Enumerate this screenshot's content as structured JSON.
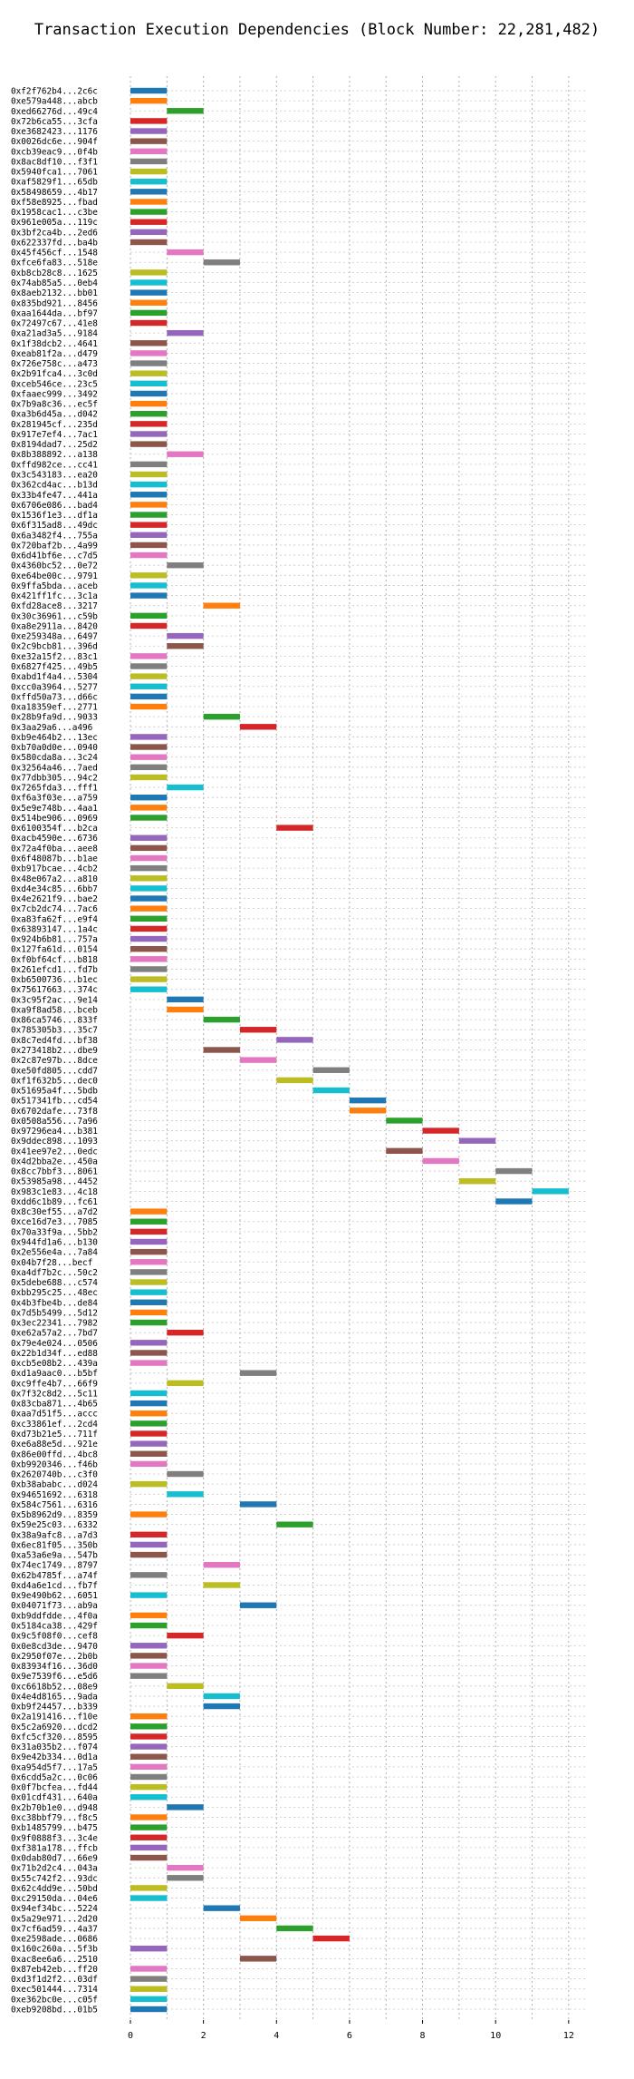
{
  "chart_data": {
    "type": "bar",
    "orientation": "horizontal",
    "title": "Transaction Execution Dependencies (Block Number: 22,281,482)",
    "xlabel": "",
    "ylabel": "",
    "xlim": [
      0,
      12.5
    ],
    "xticks": [
      0,
      2,
      4,
      6,
      8,
      10,
      12
    ],
    "grid": true,
    "bar_duration": 1,
    "transactions": [
      {
        "label": "0xf2f762b4...2c6c",
        "start": 0,
        "color": "#1f77b4"
      },
      {
        "label": "0xe579a448...abcb",
        "start": 0,
        "color": "#ff7f0e"
      },
      {
        "label": "0xed66276d...49c4",
        "start": 1,
        "color": "#2ca02c"
      },
      {
        "label": "0x72b6ca55...3cfa",
        "start": 0,
        "color": "#d62728"
      },
      {
        "label": "0xe3682423...1176",
        "start": 0,
        "color": "#9467bd"
      },
      {
        "label": "0x0026dc6e...904f",
        "start": 0,
        "color": "#8c564b"
      },
      {
        "label": "0xcb39eac9...0f4b",
        "start": 0,
        "color": "#e377c2"
      },
      {
        "label": "0x8ac8df10...f3f1",
        "start": 0,
        "color": "#7f7f7f"
      },
      {
        "label": "0x5940fca1...7061",
        "start": 0,
        "color": "#bcbd22"
      },
      {
        "label": "0xaf5829f1...65db",
        "start": 0,
        "color": "#17becf"
      },
      {
        "label": "0x58498659...4b17",
        "start": 0,
        "color": "#1f77b4"
      },
      {
        "label": "0xf58e8925...fbad",
        "start": 0,
        "color": "#ff7f0e"
      },
      {
        "label": "0x1958cac1...c3be",
        "start": 0,
        "color": "#2ca02c"
      },
      {
        "label": "0x961e005a...119c",
        "start": 0,
        "color": "#d62728"
      },
      {
        "label": "0x3bf2ca4b...2ed6",
        "start": 0,
        "color": "#9467bd"
      },
      {
        "label": "0x622337fd...ba4b",
        "start": 0,
        "color": "#8c564b"
      },
      {
        "label": "0x45f456cf...1548",
        "start": 1,
        "color": "#e377c2"
      },
      {
        "label": "0xfce6fa83...518e",
        "start": 2,
        "color": "#7f7f7f"
      },
      {
        "label": "0xb8cb28c8...1625",
        "start": 0,
        "color": "#bcbd22"
      },
      {
        "label": "0x74ab85a5...0eb4",
        "start": 0,
        "color": "#17becf"
      },
      {
        "label": "0x8aeb2132...bb01",
        "start": 0,
        "color": "#1f77b4"
      },
      {
        "label": "0x835bd921...8456",
        "start": 0,
        "color": "#ff7f0e"
      },
      {
        "label": "0xaa1644da...bf97",
        "start": 0,
        "color": "#2ca02c"
      },
      {
        "label": "0x72497c67...41e8",
        "start": 0,
        "color": "#d62728"
      },
      {
        "label": "0xa21ad3a5...9184",
        "start": 1,
        "color": "#9467bd"
      },
      {
        "label": "0x1f38dcb2...4641",
        "start": 0,
        "color": "#8c564b"
      },
      {
        "label": "0xeab81f2a...d479",
        "start": 0,
        "color": "#e377c2"
      },
      {
        "label": "0x726e758c...a473",
        "start": 0,
        "color": "#7f7f7f"
      },
      {
        "label": "0x2b91fca4...3c0d",
        "start": 0,
        "color": "#bcbd22"
      },
      {
        "label": "0xceb546ce...23c5",
        "start": 0,
        "color": "#17becf"
      },
      {
        "label": "0xfaaec999...3492",
        "start": 0,
        "color": "#1f77b4"
      },
      {
        "label": "0x7b9a8c36...ec5f",
        "start": 0,
        "color": "#ff7f0e"
      },
      {
        "label": "0xa3b6d45a...d042",
        "start": 0,
        "color": "#2ca02c"
      },
      {
        "label": "0x281945cf...235d",
        "start": 0,
        "color": "#d62728"
      },
      {
        "label": "0x917e7ef4...7ac1",
        "start": 0,
        "color": "#9467bd"
      },
      {
        "label": "0x8194dad7...25d2",
        "start": 0,
        "color": "#8c564b"
      },
      {
        "label": "0x8b388892...a138",
        "start": 1,
        "color": "#e377c2"
      },
      {
        "label": "0xffd982ce...cc41",
        "start": 0,
        "color": "#7f7f7f"
      },
      {
        "label": "0x3c543183...ea20",
        "start": 0,
        "color": "#bcbd22"
      },
      {
        "label": "0x362cd4ac...b13d",
        "start": 0,
        "color": "#17becf"
      },
      {
        "label": "0x33b4fe47...441a",
        "start": 0,
        "color": "#1f77b4"
      },
      {
        "label": "0x6706e086...bad4",
        "start": 0,
        "color": "#ff7f0e"
      },
      {
        "label": "0x1536f1e3...df1a",
        "start": 0,
        "color": "#2ca02c"
      },
      {
        "label": "0x6f315ad8...49dc",
        "start": 0,
        "color": "#d62728"
      },
      {
        "label": "0x6a3482f4...755a",
        "start": 0,
        "color": "#9467bd"
      },
      {
        "label": "0x720baf2b...4a99",
        "start": 0,
        "color": "#8c564b"
      },
      {
        "label": "0x6d41bf6e...c7d5",
        "start": 0,
        "color": "#e377c2"
      },
      {
        "label": "0x4360bc52...0e72",
        "start": 1,
        "color": "#7f7f7f"
      },
      {
        "label": "0xe64be00c...9791",
        "start": 0,
        "color": "#bcbd22"
      },
      {
        "label": "0x9ffa5bda...aceb",
        "start": 0,
        "color": "#17becf"
      },
      {
        "label": "0x421ff1fc...3c1a",
        "start": 0,
        "color": "#1f77b4"
      },
      {
        "label": "0xfd28ace8...3217",
        "start": 2,
        "color": "#ff7f0e"
      },
      {
        "label": "0x30c36961...c59b",
        "start": 0,
        "color": "#2ca02c"
      },
      {
        "label": "0xa8e2911a...8420",
        "start": 0,
        "color": "#d62728"
      },
      {
        "label": "0xe259348a...6497",
        "start": 1,
        "color": "#9467bd"
      },
      {
        "label": "0x2c9bcb81...396d",
        "start": 1,
        "color": "#8c564b"
      },
      {
        "label": "0xe32a15f2...83c1",
        "start": 0,
        "color": "#e377c2"
      },
      {
        "label": "0x6827f425...49b5",
        "start": 0,
        "color": "#7f7f7f"
      },
      {
        "label": "0xabd1f4a4...5304",
        "start": 0,
        "color": "#bcbd22"
      },
      {
        "label": "0xcc0a3964...5277",
        "start": 0,
        "color": "#17becf"
      },
      {
        "label": "0xffd50a73...d66c",
        "start": 0,
        "color": "#1f77b4"
      },
      {
        "label": "0xa18359ef...2771",
        "start": 0,
        "color": "#ff7f0e"
      },
      {
        "label": "0x28b9fa9d...9033",
        "start": 2,
        "color": "#2ca02c"
      },
      {
        "label": "0x3aa29a6...a496",
        "start": 3,
        "color": "#d62728"
      },
      {
        "label": "0xb9e464b2...13ec",
        "start": 0,
        "color": "#9467bd"
      },
      {
        "label": "0xb70a0d0e...0940",
        "start": 0,
        "color": "#8c564b"
      },
      {
        "label": "0x580cda8a...3c24",
        "start": 0,
        "color": "#e377c2"
      },
      {
        "label": "0x32564a46...7aed",
        "start": 0,
        "color": "#7f7f7f"
      },
      {
        "label": "0x77dbb305...94c2",
        "start": 0,
        "color": "#bcbd22"
      },
      {
        "label": "0x7265fda3...fff1",
        "start": 1,
        "color": "#17becf"
      },
      {
        "label": "0xf6a3f03e...a759",
        "start": 0,
        "color": "#1f77b4"
      },
      {
        "label": "0x5e9e748b...4aa1",
        "start": 0,
        "color": "#ff7f0e"
      },
      {
        "label": "0x514be906...0969",
        "start": 0,
        "color": "#2ca02c"
      },
      {
        "label": "0x6100354f...b2ca",
        "start": 4,
        "color": "#d62728"
      },
      {
        "label": "0xacb4590e...6736",
        "start": 0,
        "color": "#9467bd"
      },
      {
        "label": "0x72a4f0ba...aee8",
        "start": 0,
        "color": "#8c564b"
      },
      {
        "label": "0x6f48087b...b1ae",
        "start": 0,
        "color": "#e377c2"
      },
      {
        "label": "0xb917bcae...4cb2",
        "start": 0,
        "color": "#7f7f7f"
      },
      {
        "label": "0x48e067a2...a810",
        "start": 0,
        "color": "#bcbd22"
      },
      {
        "label": "0xd4e34c85...6bb7",
        "start": 0,
        "color": "#17becf"
      },
      {
        "label": "0x4e2621f9...bae2",
        "start": 0,
        "color": "#1f77b4"
      },
      {
        "label": "0x7cb2dc74...7ac6",
        "start": 0,
        "color": "#ff7f0e"
      },
      {
        "label": "0xa83fa62f...e9f4",
        "start": 0,
        "color": "#2ca02c"
      },
      {
        "label": "0x63893147...1a4c",
        "start": 0,
        "color": "#d62728"
      },
      {
        "label": "0x924b6b81...757a",
        "start": 0,
        "color": "#9467bd"
      },
      {
        "label": "0x127fa61d...0154",
        "start": 0,
        "color": "#8c564b"
      },
      {
        "label": "0xf0bf64cf...b818",
        "start": 0,
        "color": "#e377c2"
      },
      {
        "label": "0x261efcd1...fd7b",
        "start": 0,
        "color": "#7f7f7f"
      },
      {
        "label": "0xb6500736...b1ec",
        "start": 0,
        "color": "#bcbd22"
      },
      {
        "label": "0x75617663...374c",
        "start": 0,
        "color": "#17becf"
      },
      {
        "label": "0x3c95f2ac...9e14",
        "start": 1,
        "color": "#1f77b4"
      },
      {
        "label": "0xa9f8ad58...bceb",
        "start": 1,
        "color": "#ff7f0e"
      },
      {
        "label": "0x86ca5746...833f",
        "start": 2,
        "color": "#2ca02c"
      },
      {
        "label": "0x785305b3...35c7",
        "start": 3,
        "color": "#d62728"
      },
      {
        "label": "0x8c7ed4fd...bf38",
        "start": 4,
        "color": "#9467bd"
      },
      {
        "label": "0x273418b2...dbe9",
        "start": 2,
        "color": "#8c564b"
      },
      {
        "label": "0x2c87e97b...8dce",
        "start": 3,
        "color": "#e377c2"
      },
      {
        "label": "0xe50fd805...cdd7",
        "start": 5,
        "color": "#7f7f7f"
      },
      {
        "label": "0xf1f632b5...dec0",
        "start": 4,
        "color": "#bcbd22"
      },
      {
        "label": "0x51695a4f...5bdb",
        "start": 5,
        "color": "#17becf"
      },
      {
        "label": "0x517341fb...cd54",
        "start": 6,
        "color": "#1f77b4"
      },
      {
        "label": "0x6702dafe...73f8",
        "start": 6,
        "color": "#ff7f0e"
      },
      {
        "label": "0x0508a556...7a96",
        "start": 7,
        "color": "#2ca02c"
      },
      {
        "label": "0x97296ea4...b381",
        "start": 8,
        "color": "#d62728"
      },
      {
        "label": "0x9ddec898...1093",
        "start": 9,
        "color": "#9467bd"
      },
      {
        "label": "0x41ee97e2...0edc",
        "start": 7,
        "color": "#8c564b"
      },
      {
        "label": "0x4d2bba2e...450a",
        "start": 8,
        "color": "#e377c2"
      },
      {
        "label": "0x8cc7bbf3...8061",
        "start": 10,
        "color": "#7f7f7f"
      },
      {
        "label": "0x53985a98...4452",
        "start": 9,
        "color": "#bcbd22"
      },
      {
        "label": "0x983c1e83...4c18",
        "start": 11,
        "color": "#17becf"
      },
      {
        "label": "0xdd6c1b89...fc61",
        "start": 10,
        "color": "#1f77b4"
      },
      {
        "label": "0x8c30ef55...a7d2",
        "start": 0,
        "color": "#ff7f0e"
      },
      {
        "label": "0xce16d7e3...7085",
        "start": 0,
        "color": "#2ca02c"
      },
      {
        "label": "0x70a33f9a...5bb2",
        "start": 0,
        "color": "#d62728"
      },
      {
        "label": "0x944fd1a6...b130",
        "start": 0,
        "color": "#9467bd"
      },
      {
        "label": "0x2e556e4a...7a84",
        "start": 0,
        "color": "#8c564b"
      },
      {
        "label": "0x04b7f28...becf",
        "start": 0,
        "color": "#e377c2"
      },
      {
        "label": "0xa4df7b2c...50c2",
        "start": 0,
        "color": "#7f7f7f"
      },
      {
        "label": "0x5debe688...c574",
        "start": 0,
        "color": "#bcbd22"
      },
      {
        "label": "0xbb295c25...48ec",
        "start": 0,
        "color": "#17becf"
      },
      {
        "label": "0x4b3fbe4b...de84",
        "start": 0,
        "color": "#1f77b4"
      },
      {
        "label": "0x7d5b5499...5d12",
        "start": 0,
        "color": "#ff7f0e"
      },
      {
        "label": "0x3ec22341...7982",
        "start": 0,
        "color": "#2ca02c"
      },
      {
        "label": "0xe62a57a2...7bd7",
        "start": 1,
        "color": "#d62728"
      },
      {
        "label": "0x79e4e024...0506",
        "start": 0,
        "color": "#9467bd"
      },
      {
        "label": "0x22b1d34f...ed88",
        "start": 0,
        "color": "#8c564b"
      },
      {
        "label": "0xcb5e08b2...439a",
        "start": 0,
        "color": "#e377c2"
      },
      {
        "label": "0xd1a9aac0...b5bf",
        "start": 3,
        "color": "#7f7f7f"
      },
      {
        "label": "0xc9ffe4b7...66f9",
        "start": 1,
        "color": "#bcbd22"
      },
      {
        "label": "0x7f32c8d2...5c11",
        "start": 0,
        "color": "#17becf"
      },
      {
        "label": "0x83cba871...4b65",
        "start": 0,
        "color": "#1f77b4"
      },
      {
        "label": "0xaa7d51f5...accc",
        "start": 0,
        "color": "#ff7f0e"
      },
      {
        "label": "0xc33861ef...2cd4",
        "start": 0,
        "color": "#2ca02c"
      },
      {
        "label": "0xd73b21e5...711f",
        "start": 0,
        "color": "#d62728"
      },
      {
        "label": "0xe6a88e5d...921e",
        "start": 0,
        "color": "#9467bd"
      },
      {
        "label": "0x86e00ffd...4bc8",
        "start": 0,
        "color": "#8c564b"
      },
      {
        "label": "0xb9920346...f46b",
        "start": 0,
        "color": "#e377c2"
      },
      {
        "label": "0x2620740b...c3f0",
        "start": 1,
        "color": "#7f7f7f"
      },
      {
        "label": "0xb38ababc...d024",
        "start": 0,
        "color": "#bcbd22"
      },
      {
        "label": "0x94651692...6318",
        "start": 1,
        "color": "#17becf"
      },
      {
        "label": "0x584c7561...6316",
        "start": 3,
        "color": "#1f77b4"
      },
      {
        "label": "0x5b8962d9...8359",
        "start": 0,
        "color": "#ff7f0e"
      },
      {
        "label": "0x59e25c03...6332",
        "start": 4,
        "color": "#2ca02c"
      },
      {
        "label": "0x38a9afc8...a7d3",
        "start": 0,
        "color": "#d62728"
      },
      {
        "label": "0x6ec81f05...350b",
        "start": 0,
        "color": "#9467bd"
      },
      {
        "label": "0xa53a6e9a...547b",
        "start": 0,
        "color": "#8c564b"
      },
      {
        "label": "0x74ec1749...8797",
        "start": 2,
        "color": "#e377c2"
      },
      {
        "label": "0x62b4785f...a74f",
        "start": 0,
        "color": "#7f7f7f"
      },
      {
        "label": "0xd4a6e1cd...fb7f",
        "start": 2,
        "color": "#bcbd22"
      },
      {
        "label": "0x9e490b62...6051",
        "start": 0,
        "color": "#17becf"
      },
      {
        "label": "0x04071f73...ab9a",
        "start": 3,
        "color": "#1f77b4"
      },
      {
        "label": "0xb9ddfdde...4f0a",
        "start": 0,
        "color": "#ff7f0e"
      },
      {
        "label": "0x5184ca38...429f",
        "start": 0,
        "color": "#2ca02c"
      },
      {
        "label": "0x9c5f08f0...cef8",
        "start": 1,
        "color": "#d62728"
      },
      {
        "label": "0x0e8cd3de...9470",
        "start": 0,
        "color": "#9467bd"
      },
      {
        "label": "0x2950f07e...2b0b",
        "start": 0,
        "color": "#8c564b"
      },
      {
        "label": "0x83934f16...36d0",
        "start": 0,
        "color": "#e377c2"
      },
      {
        "label": "0x9e7539f6...e5d6",
        "start": 0,
        "color": "#7f7f7f"
      },
      {
        "label": "0xc6618b52...08e9",
        "start": 1,
        "color": "#bcbd22"
      },
      {
        "label": "0x4e4d8165...9ada",
        "start": 2,
        "color": "#17becf"
      },
      {
        "label": "0xb9f24457...b339",
        "start": 2,
        "color": "#1f77b4"
      },
      {
        "label": "0x2a191416...f10e",
        "start": 0,
        "color": "#ff7f0e"
      },
      {
        "label": "0x5c2a6920...dcd2",
        "start": 0,
        "color": "#2ca02c"
      },
      {
        "label": "0xfc5cf320...8595",
        "start": 0,
        "color": "#d62728"
      },
      {
        "label": "0x31a035b2...f074",
        "start": 0,
        "color": "#9467bd"
      },
      {
        "label": "0x9e42b334...0d1a",
        "start": 0,
        "color": "#8c564b"
      },
      {
        "label": "0xa954d5f7...17a5",
        "start": 0,
        "color": "#e377c2"
      },
      {
        "label": "0x6cdd5a2c...0c06",
        "start": 0,
        "color": "#7f7f7f"
      },
      {
        "label": "0x0f7bcfea...fd44",
        "start": 0,
        "color": "#bcbd22"
      },
      {
        "label": "0x01cdf431...640a",
        "start": 0,
        "color": "#17becf"
      },
      {
        "label": "0x2b70b1e0...d948",
        "start": 1,
        "color": "#1f77b4"
      },
      {
        "label": "0xc38bbf79...f8c5",
        "start": 0,
        "color": "#ff7f0e"
      },
      {
        "label": "0xb1485799...b475",
        "start": 0,
        "color": "#2ca02c"
      },
      {
        "label": "0x9f0888f3...3c4e",
        "start": 0,
        "color": "#d62728"
      },
      {
        "label": "0xf381a178...ffcb",
        "start": 0,
        "color": "#9467bd"
      },
      {
        "label": "0x0dab80d7...66e9",
        "start": 0,
        "color": "#8c564b"
      },
      {
        "label": "0x71b2d2c4...043a",
        "start": 1,
        "color": "#e377c2"
      },
      {
        "label": "0x55c742f2...93dc",
        "start": 1,
        "color": "#7f7f7f"
      },
      {
        "label": "0x62c4dd9e...50bd",
        "start": 0,
        "color": "#bcbd22"
      },
      {
        "label": "0xc29150da...04e6",
        "start": 0,
        "color": "#17becf"
      },
      {
        "label": "0x94ef34bc...5224",
        "start": 2,
        "color": "#1f77b4"
      },
      {
        "label": "0x5a29e971...2d20",
        "start": 3,
        "color": "#ff7f0e"
      },
      {
        "label": "0x7cf6ad59...4a37",
        "start": 4,
        "color": "#2ca02c"
      },
      {
        "label": "0xe2598ade...0686",
        "start": 5,
        "color": "#d62728"
      },
      {
        "label": "0x160c260a...5f3b",
        "start": 0,
        "color": "#9467bd"
      },
      {
        "label": "0xac8ee6a6...2510",
        "start": 3,
        "color": "#8c564b"
      },
      {
        "label": "0x87eb42eb...ff20",
        "start": 0,
        "color": "#e377c2"
      },
      {
        "label": "0xd3f1d2f2...03df",
        "start": 0,
        "color": "#7f7f7f"
      },
      {
        "label": "0xec501444...7314",
        "start": 0,
        "color": "#bcbd22"
      },
      {
        "label": "0xe362bc0e...c05f",
        "start": 0,
        "color": "#17becf"
      },
      {
        "label": "0xeb9208bd...01b5",
        "start": 0,
        "color": "#1f77b4"
      }
    ]
  }
}
